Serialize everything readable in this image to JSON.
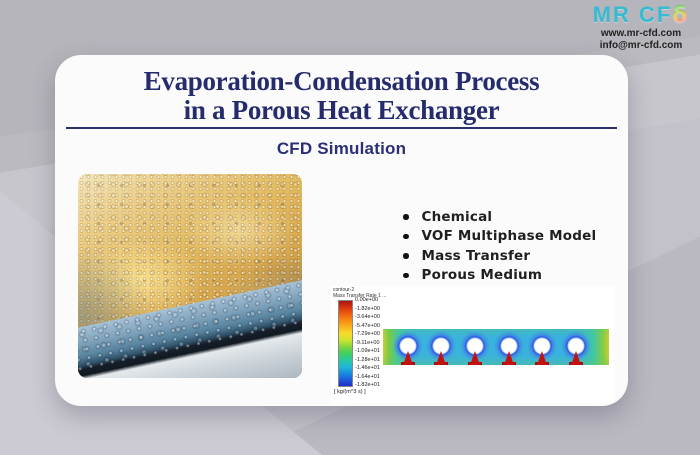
{
  "colors": {
    "accent_navy": "#252b6d",
    "logo_teal": "#36bcd2",
    "background_gray": "#c3c2ca"
  },
  "logo": {
    "brand": "MR CF",
    "brand_d": "δ",
    "website": "www.mr-cfd.com",
    "email": "info@mr-cfd.com"
  },
  "header": {
    "title_line1": "Evaporation-Condensation Process",
    "title_line2": "in a Porous Heat Exchanger",
    "subtitle": "CFD Simulation"
  },
  "features": {
    "items": [
      "Chemical",
      "VOF Multiphase Model",
      "Mass Transfer",
      "Porous Medium"
    ]
  },
  "photo": {
    "description": "Condensation droplets on a golden window pane with blue-gray window frame at bottom left"
  },
  "chart_data": {
    "type": "heatmap",
    "title": "contour-2",
    "series_label": "Mass Transfer Rate 1 ...",
    "unit": "[ kg/(m^3 s) ]",
    "legend_values": [
      "0.00e+00",
      "-1.82e+00",
      "-3.64e+00",
      "-5.47e+00",
      "-7.29e+00",
      "-9.11e+00",
      "-1.09e+01",
      "-1.28e+01",
      "-1.46e+01",
      "-1.64e+01",
      "-1.82e+01"
    ],
    "value_range": [
      -18.2,
      0
    ],
    "tube_count": 6,
    "colormap": [
      "#a8150d",
      "#f2700f",
      "#f8dc2a",
      "#7fd63c",
      "#26c9a4",
      "#1fb4d8",
      "#1d2bc9"
    ],
    "description": "ANSYS Fluent contour of mass transfer rate in a horizontal porous channel with six circular tubes; white tubes ringed in dark blue, red high-transfer wakes beneath each tube, yellow-green field near inlet and outlet"
  }
}
